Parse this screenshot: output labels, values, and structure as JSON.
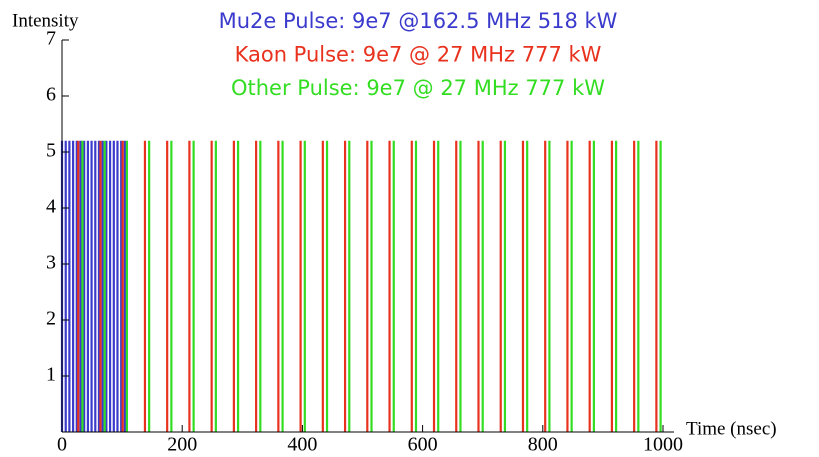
{
  "chart_data": {
    "type": "pulse",
    "y_label": "Intensity",
    "x_label": "Time (nsec)",
    "xlim": [
      0,
      1000
    ],
    "ylim": [
      0,
      7
    ],
    "xticks": [
      0,
      200,
      400,
      600,
      800,
      1000
    ],
    "yticks": [
      1,
      2,
      3,
      4,
      5,
      6,
      7
    ],
    "series": [
      {
        "name": "Mu2e Pulse:  9e7 @162.5 MHz 518 kW",
        "color": "#3a3acc",
        "x": [
          0,
          6.2,
          12.3,
          18.5,
          24.6,
          30.8,
          36.9,
          43.1,
          49.2,
          55.4,
          61.5,
          67.7,
          73.8,
          80,
          86.2,
          92.3,
          98.5,
          104.6
        ],
        "values": [
          5.2,
          5.2,
          5.2,
          5.2,
          5.2,
          5.2,
          5.2,
          5.2,
          5.2,
          5.2,
          5.2,
          5.2,
          5.2,
          5.2,
          5.2,
          5.2,
          5.2,
          5.2
        ]
      },
      {
        "name": "Kaon Pulse: 9e7 @ 27 MHz 777 kW",
        "color": "#e8321e",
        "x": [
          27,
          64,
          101,
          138,
          175,
          212,
          249,
          286,
          323,
          360,
          397,
          434,
          471,
          508,
          545,
          582,
          619,
          656,
          693,
          730,
          767,
          804,
          841,
          878,
          915,
          952,
          989
        ],
        "values": [
          5.2,
          5.2,
          5.2,
          5.2,
          5.2,
          5.2,
          5.2,
          5.2,
          5.2,
          5.2,
          5.2,
          5.2,
          5.2,
          5.2,
          5.2,
          5.2,
          5.2,
          5.2,
          5.2,
          5.2,
          5.2,
          5.2,
          5.2,
          5.2,
          5.2,
          5.2,
          5.2
        ]
      },
      {
        "name": "Other Pulse: 9e7 @ 27 MHz 777 kW",
        "color": "#33dd22",
        "x": [
          34,
          71,
          108,
          145,
          182,
          219,
          256,
          293,
          330,
          367,
          404,
          441,
          478,
          515,
          552,
          589,
          626,
          663,
          700,
          737,
          774,
          811,
          848,
          885,
          922,
          959,
          996
        ],
        "values": [
          5.2,
          5.2,
          5.2,
          5.2,
          5.2,
          5.2,
          5.2,
          5.2,
          5.2,
          5.2,
          5.2,
          5.2,
          5.2,
          5.2,
          5.2,
          5.2,
          5.2,
          5.2,
          5.2,
          5.2,
          5.2,
          5.2,
          5.2,
          5.2,
          5.2,
          5.2,
          5.2
        ]
      }
    ]
  }
}
